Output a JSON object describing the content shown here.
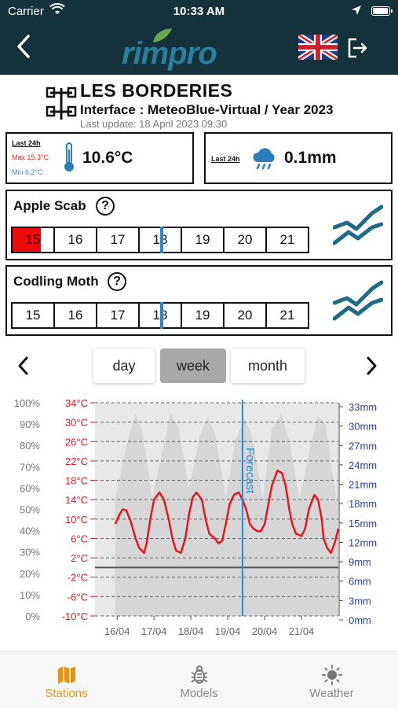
{
  "status_bar": {
    "carrier": "Carrier",
    "time": "10:33 AM"
  },
  "header": {
    "logo_text": "rimpro",
    "language_flag": "uk-flag-icon"
  },
  "station": {
    "name": "LES BORDERIES",
    "interface": "Interface : MeteoBlue-Virtual / Year 2023",
    "last_update": "Last update: 18 April 2023 09:30"
  },
  "temperature_card": {
    "period": "Last 24h",
    "max": "Max 15.3°C",
    "min": "Min 6.2°C",
    "value": "10.6°C"
  },
  "rain_card": {
    "period": "Last 24h",
    "value": "0.1mm"
  },
  "models": [
    {
      "title": "Apple Scab",
      "help": "?",
      "days": [
        "15",
        "16",
        "17",
        "18",
        "19",
        "20",
        "21"
      ],
      "risk_day_index": 0
    },
    {
      "title": "Codling Moth",
      "help": "?",
      "days": [
        "15",
        "16",
        "17",
        "18",
        "19",
        "20",
        "21"
      ],
      "risk_day_index": -1
    }
  ],
  "period_selector": {
    "options": [
      "day",
      "week",
      "month"
    ],
    "selected": "week"
  },
  "chart_data": {
    "type": "line",
    "humidity_axis": [
      "100%",
      "90%",
      "80%",
      "70%",
      "60%",
      "50%",
      "40%",
      "30%",
      "20%",
      "10%",
      "0%"
    ],
    "temperature_axis": [
      "34°C",
      "30°C",
      "26°C",
      "22°C",
      "18°C",
      "14°C",
      "10°C",
      "6°C",
      "2°C",
      "-2°C",
      "-6°C",
      "-10°C"
    ],
    "rain_axis": [
      "33mm",
      "30mm",
      "27mm",
      "24mm",
      "21mm",
      "18mm",
      "15mm",
      "12mm",
      "9mm",
      "6mm",
      "3mm",
      "0mm"
    ],
    "x_labels": [
      "16/04",
      "17/04",
      "18/04",
      "19/04",
      "20/04",
      "21/04"
    ],
    "ylim_temperature": [
      -10,
      34
    ],
    "ylim_humidity": [
      0,
      100
    ],
    "forecast_label": "Forecast",
    "forecast_day": 3.45,
    "colors": {
      "temperature": "#e8141c",
      "humidity": "#dcdcdc",
      "rain_axis": "#2a3ea8",
      "forecast": "#2a88d0"
    },
    "series": [
      {
        "name": "temperature",
        "x": [
          0,
          0.12,
          0.2,
          0.3,
          0.42,
          0.55,
          0.65,
          0.78,
          0.85,
          0.95,
          1.05,
          1.2,
          1.32,
          1.45,
          1.55,
          1.65,
          1.78,
          1.9,
          2.0,
          2.1,
          2.2,
          2.35,
          2.45,
          2.55,
          2.7,
          2.8,
          2.9,
          3.0,
          3.1,
          3.22,
          3.35,
          3.45,
          3.55,
          3.65,
          3.75,
          3.85,
          3.95,
          4.05,
          4.15,
          4.25,
          4.4,
          4.52,
          4.62,
          4.72,
          4.8,
          4.9,
          5.05,
          5.15,
          5.25,
          5.4,
          5.5,
          5.6,
          5.65,
          5.75,
          5.85,
          5.95,
          6.05
        ],
        "values": [
          9,
          11,
          12,
          11.8,
          9.5,
          6,
          4,
          3,
          5,
          10,
          14,
          15.5,
          14,
          10,
          6,
          3.5,
          3,
          6,
          11,
          14.5,
          15.5,
          14,
          10,
          7,
          6,
          5,
          5.5,
          9,
          13,
          15,
          15.5,
          14,
          12,
          9,
          8,
          7.5,
          7.5,
          9,
          13,
          17,
          20,
          19.5,
          17,
          12,
          9,
          7,
          6.5,
          8,
          12,
          15,
          14,
          10,
          6,
          4,
          3,
          5,
          8
        ]
      },
      {
        "name": "humidity",
        "x": [
          0,
          0.3,
          0.55,
          0.75,
          1.0,
          1.25,
          1.5,
          1.72,
          2.0,
          2.3,
          2.5,
          2.72,
          3.0,
          3.25,
          3.5,
          3.7,
          4.0,
          4.25,
          4.5,
          4.75,
          5.0,
          5.3,
          5.5,
          5.7,
          6.0,
          6.05
        ],
        "values": [
          55,
          80,
          95,
          85,
          55,
          75,
          95,
          88,
          60,
          85,
          93,
          85,
          55,
          82,
          93,
          85,
          55,
          88,
          95,
          80,
          55,
          80,
          94,
          90,
          55,
          90
        ]
      }
    ]
  },
  "tabs": [
    {
      "label": "Stations",
      "icon": "map-icon",
      "active": true
    },
    {
      "label": "Models",
      "icon": "bug-icon",
      "active": false
    },
    {
      "label": "Weather",
      "icon": "sun-icon",
      "active": false
    }
  ]
}
